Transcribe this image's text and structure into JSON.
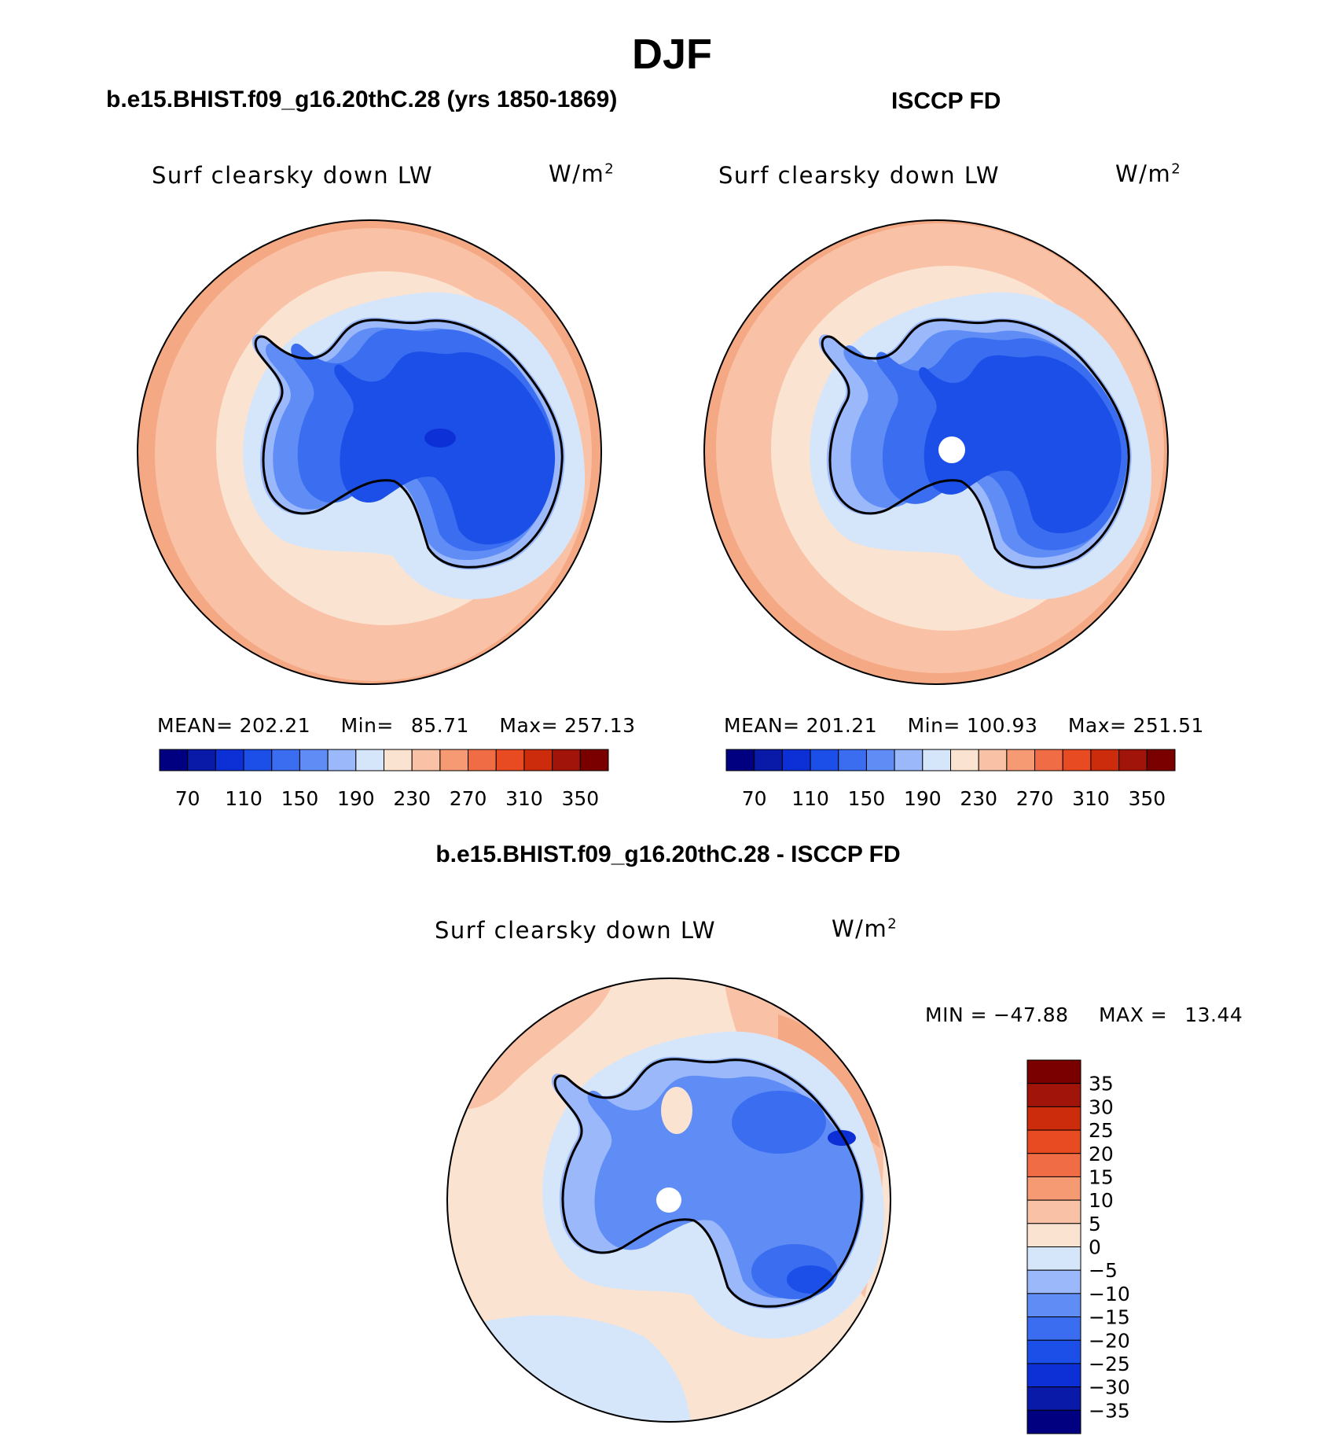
{
  "figure": {
    "title": "DJF",
    "diff_title": "b.e15.BHIST.f09_g16.20thC.28 - ISCCP FD"
  },
  "panels": [
    {
      "id": "model",
      "title": "b.e15.BHIST.f09_g16.20thC.28 (yrs 1850-1869)",
      "variable": "Surf clearsky down LW",
      "units_base": "W/m",
      "units_exp": "2",
      "mean_label": "MEAN=",
      "mean": "202.21",
      "min_label": "Min=",
      "min": "85.71",
      "max_label": "Max=",
      "max": "257.13"
    },
    {
      "id": "obs",
      "title": "ISCCP FD",
      "variable": "Surf clearsky down LW",
      "units_base": "W/m",
      "units_exp": "2",
      "mean_label": "MEAN=",
      "mean": "201.21",
      "min_label": "Min=",
      "min": "100.93",
      "max_label": "Max=",
      "max": "251.51"
    }
  ],
  "diff_panel": {
    "variable": "Surf clearsky down LW",
    "units_base": "W/m",
    "units_exp": "2",
    "min_label": "MIN =",
    "min": "−47.88",
    "max_label": "MAX =",
    "max": "13.44"
  },
  "chart_data": [
    {
      "type": "heatmap",
      "projection": "south polar stereographic",
      "title": "b.e15.BHIST.f09_g16.20thC.28 (yrs 1850-1869)",
      "variable": "Surf clearsky down LW",
      "units": "W/m²",
      "colorbar_ticks": [
        "70",
        "110",
        "150",
        "190",
        "230",
        "270",
        "310",
        "350"
      ],
      "contour_levels": [
        70,
        90,
        110,
        130,
        150,
        170,
        190,
        210,
        230,
        250,
        270,
        290,
        310,
        330,
        350
      ],
      "palette": [
        "#000080",
        "#0a1aa8",
        "#0d2fd6",
        "#1b4fe8",
        "#3a6df0",
        "#5f8df5",
        "#9ab8fa",
        "#d5e6fb",
        "#fbe3d1",
        "#f9c2a6",
        "#f59a73",
        "#f06c44",
        "#e84a22",
        "#cc2c0c",
        "#a0140a",
        "#7a0000"
      ],
      "mean": 202.21,
      "min": 85.71,
      "max": 257.13
    },
    {
      "type": "heatmap",
      "projection": "south polar stereographic",
      "title": "ISCCP FD",
      "variable": "Surf clearsky down LW",
      "units": "W/m²",
      "colorbar_ticks": [
        "70",
        "110",
        "150",
        "190",
        "230",
        "270",
        "310",
        "350"
      ],
      "contour_levels": [
        70,
        90,
        110,
        130,
        150,
        170,
        190,
        210,
        230,
        250,
        270,
        290,
        310,
        330,
        350
      ],
      "palette": [
        "#000080",
        "#0a1aa8",
        "#0d2fd6",
        "#1b4fe8",
        "#3a6df0",
        "#5f8df5",
        "#9ab8fa",
        "#d5e6fb",
        "#fbe3d1",
        "#f9c2a6",
        "#f59a73",
        "#f06c44",
        "#e84a22",
        "#cc2c0c",
        "#a0140a",
        "#7a0000"
      ],
      "mean": 201.21,
      "min": 100.93,
      "max": 251.51
    },
    {
      "type": "heatmap",
      "projection": "south polar stereographic",
      "title": "b.e15.BHIST.f09_g16.20thC.28 - ISCCP FD",
      "variable": "Surf clearsky down LW",
      "units": "W/m²",
      "colorbar_ticks": [
        "35",
        "30",
        "25",
        "20",
        "15",
        "10",
        "5",
        "0",
        "−5",
        "−10",
        "−15",
        "−20",
        "−25",
        "−30",
        "−35"
      ],
      "contour_levels": [
        -35,
        -30,
        -25,
        -20,
        -15,
        -10,
        -5,
        0,
        5,
        10,
        15,
        20,
        25,
        30,
        35
      ],
      "palette": [
        "#7a0000",
        "#a0140a",
        "#cc2c0c",
        "#e84a22",
        "#f06c44",
        "#f59a73",
        "#f9c2a6",
        "#fbe3d1",
        "#d5e6fb",
        "#9ab8fa",
        "#5f8df5",
        "#3a6df0",
        "#1b4fe8",
        "#0d2fd6",
        "#0a1aa8",
        "#000080"
      ],
      "min": -47.88,
      "max": 13.44
    }
  ]
}
